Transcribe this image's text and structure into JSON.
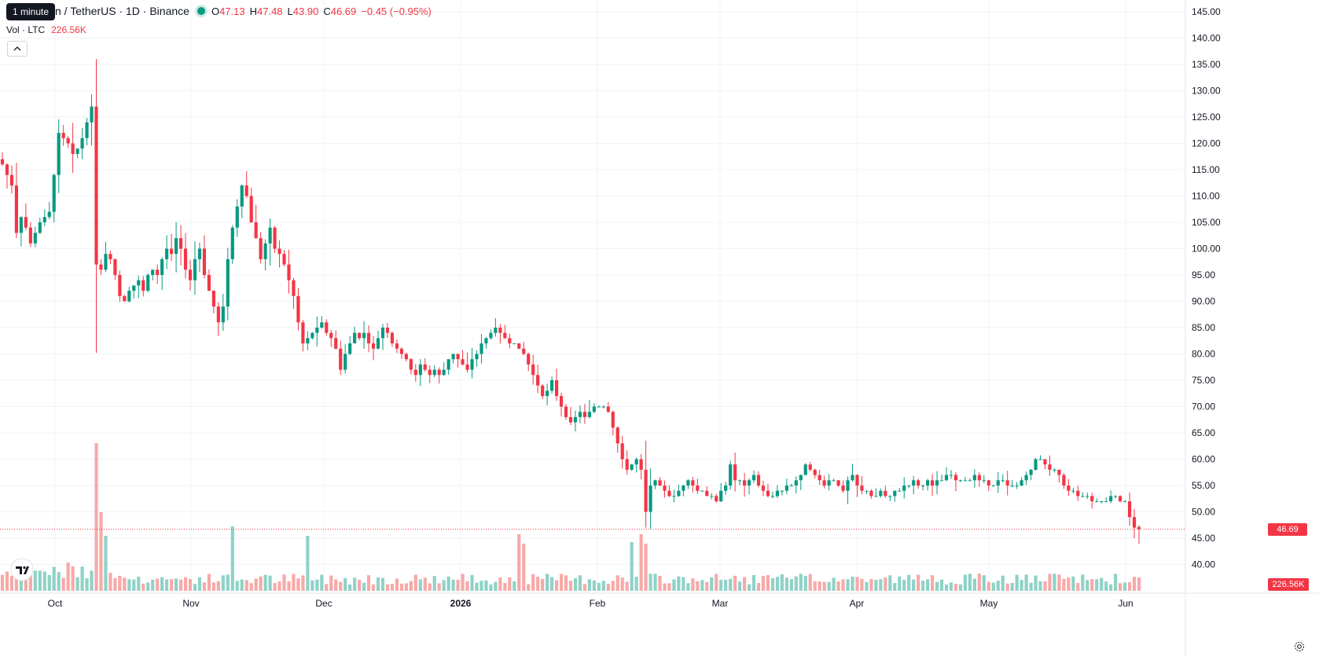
{
  "legend": {
    "symbol": "n / TetherUS · 1D · Binance",
    "o_key": "O",
    "o_val": "47.13",
    "h_key": "H",
    "h_val": "47.48",
    "l_key": "L",
    "l_val": "43.90",
    "c_key": "C",
    "c_val": "46.69",
    "change": "−0.45 (−0.95%)",
    "vol_label": "Vol · LTC",
    "vol_val": "226.56K"
  },
  "tooltip": "1 minute",
  "collapse_icon": "chevron-up-icon",
  "price_axis": {
    "ticks": [
      "145.00",
      "140.00",
      "135.00",
      "130.00",
      "125.00",
      "120.00",
      "115.00",
      "110.00",
      "105.00",
      "100.00",
      "95.00",
      "90.00",
      "85.00",
      "80.00",
      "75.00",
      "70.00",
      "65.00",
      "60.00",
      "55.00",
      "50.00",
      "45.00",
      "40.00"
    ],
    "current_price": "46.69",
    "current_volume": "226.56K"
  },
  "time_axis": {
    "labels": [
      "Oct",
      "Nov",
      "Dec",
      "2026",
      "Feb",
      "Mar",
      "Apr",
      "May",
      "Jun"
    ]
  },
  "colors": {
    "up": "#089981",
    "down": "#f23645",
    "up_vol": "#8fd2c7",
    "down_vol": "#f7a9a8",
    "grid": "#f0f3fa"
  },
  "chart_data": {
    "type": "candlestick",
    "symbol": "LTC / TetherUS",
    "interval": "1D",
    "exchange": "Binance",
    "ylim": [
      40,
      145
    ],
    "closes_approx": [
      116,
      114,
      112,
      103,
      106,
      104,
      101,
      103,
      105,
      106,
      107,
      114,
      122,
      121,
      120,
      118,
      119,
      121,
      124,
      127,
      97,
      96,
      99,
      98,
      95,
      91,
      90,
      92,
      93,
      94,
      92,
      95,
      96,
      95,
      98,
      100,
      99,
      102,
      100,
      96,
      94,
      98,
      100,
      95,
      92,
      89,
      86,
      89,
      98,
      104,
      108,
      112,
      110,
      105,
      102,
      98,
      101,
      104,
      100,
      99,
      97,
      94,
      91,
      86,
      82,
      83,
      84,
      85,
      86,
      84,
      83,
      81,
      77,
      80,
      82,
      84,
      83,
      84,
      82,
      81,
      83,
      85,
      84,
      82,
      81,
      80,
      79,
      77,
      76,
      78,
      77,
      76,
      77,
      76,
      77,
      79,
      80,
      79,
      78,
      77,
      79,
      80,
      82,
      83,
      84,
      85,
      84,
      83,
      82,
      82,
      81,
      80,
      78,
      76,
      74,
      72,
      73,
      75,
      72,
      70,
      68,
      67,
      68,
      69,
      68,
      69,
      70,
      70,
      70,
      69,
      66,
      63,
      60,
      58,
      59,
      60,
      58,
      50,
      55,
      56,
      55,
      54,
      53,
      53,
      54,
      55,
      56,
      55,
      54,
      54,
      53,
      53,
      52,
      54,
      55,
      59,
      56,
      56,
      55,
      56,
      57,
      55,
      54,
      53,
      53,
      54,
      54,
      55,
      55,
      56,
      57,
      59,
      58,
      57,
      56,
      55,
      56,
      56,
      55,
      54,
      56,
      57,
      55,
      54,
      54,
      53,
      53,
      54,
      53,
      53,
      54,
      54,
      55,
      55,
      56,
      55,
      55,
      56,
      55,
      56,
      56,
      57,
      57,
      56,
      56,
      56,
      56,
      57,
      56,
      56,
      55,
      55,
      56,
      56,
      55,
      55,
      55,
      56,
      57,
      58,
      60,
      60,
      59,
      58,
      58,
      57,
      55,
      54,
      54,
      53,
      53,
      53,
      52,
      52,
      52,
      52,
      53,
      53,
      52,
      52,
      49,
      47,
      46.69
    ],
    "volumes_note": "daily volume bars (LTC), last bar 226.56K"
  }
}
